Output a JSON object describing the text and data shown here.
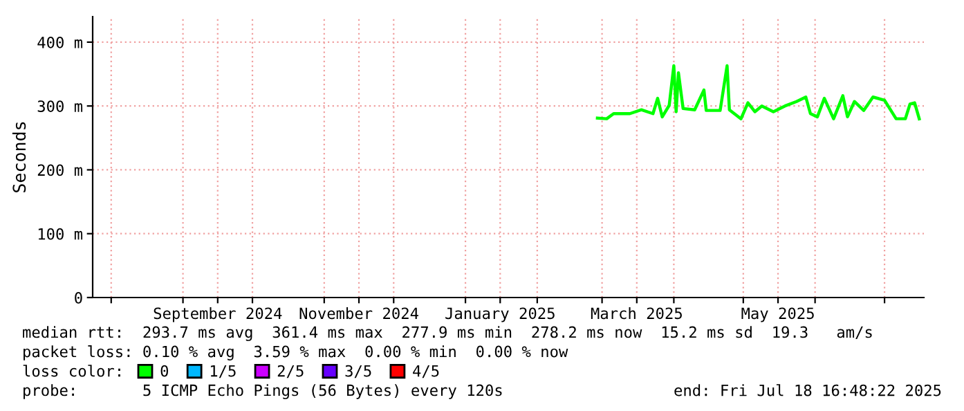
{
  "chart_data": {
    "type": "line",
    "ylabel": "Seconds",
    "x": [
      "2025-02-27",
      "2025-03-03",
      "2025-03-06",
      "2025-03-13",
      "2025-03-18",
      "2025-03-23",
      "2025-03-25",
      "2025-03-27",
      "2025-03-30",
      "2025-04-01",
      "2025-04-02",
      "2025-04-03",
      "2025-04-05",
      "2025-04-10",
      "2025-04-14",
      "2025-04-15",
      "2025-04-21",
      "2025-04-24",
      "2025-04-25",
      "2025-04-30",
      "2025-05-03",
      "2025-05-06",
      "2025-05-09",
      "2025-05-14",
      "2025-05-19",
      "2025-05-24",
      "2025-05-28",
      "2025-05-30",
      "2025-06-02",
      "2025-06-05",
      "2025-06-09",
      "2025-06-13",
      "2025-06-15",
      "2025-06-18",
      "2025-06-22",
      "2025-06-26",
      "2025-07-01",
      "2025-07-06",
      "2025-07-10",
      "2025-07-12",
      "2025-07-14",
      "2025-07-16"
    ],
    "series": [
      {
        "name": "0",
        "color": "#00ff00",
        "values": [
          281,
          280,
          288,
          288,
          294,
          288,
          312,
          283,
          301,
          363,
          291,
          352,
          296,
          294,
          325,
          293,
          293,
          363,
          294,
          280,
          305,
          291,
          300,
          291,
          300,
          307,
          314,
          288,
          283,
          312,
          280,
          316,
          283,
          307,
          293,
          314,
          309,
          280,
          280,
          303,
          305,
          280
        ]
      },
      {
        "name": "1/5",
        "color": "#00b8ff",
        "values": [
          null,
          null,
          null,
          null,
          null,
          null,
          null,
          null,
          null,
          null,
          null,
          null,
          null,
          null,
          null,
          null,
          null,
          null,
          null,
          null,
          null,
          null,
          null,
          null,
          null,
          null,
          null,
          null,
          null,
          null,
          null,
          null,
          null,
          null,
          null,
          null,
          null,
          null,
          null,
          null,
          null,
          null
        ]
      },
      {
        "name": "2/5",
        "color": "#cc00ff",
        "values": [
          null,
          null,
          null,
          null,
          null,
          null,
          null,
          null,
          null,
          null,
          null,
          null,
          null,
          null,
          null,
          null,
          null,
          null,
          null,
          null,
          null,
          null,
          null,
          null,
          null,
          null,
          null,
          null,
          null,
          null,
          null,
          null,
          null,
          null,
          null,
          null,
          null,
          null,
          null,
          null,
          null,
          null
        ]
      },
      {
        "name": "3/5",
        "color": "#6600ff",
        "values": [
          null,
          null,
          null,
          null,
          null,
          null,
          null,
          null,
          null,
          null,
          null,
          null,
          null,
          null,
          null,
          null,
          null,
          null,
          null,
          null,
          null,
          null,
          null,
          null,
          null,
          null,
          null,
          null,
          null,
          null,
          null,
          null,
          null,
          null,
          null,
          null,
          null,
          null,
          null,
          null,
          null,
          null
        ]
      },
      {
        "name": "4/5",
        "color": "#ff0000",
        "values": [
          null,
          null,
          null,
          null,
          null,
          null,
          null,
          null,
          null,
          null,
          null,
          null,
          null,
          null,
          null,
          null,
          null,
          null,
          null,
          null,
          null,
          null,
          null,
          null,
          null,
          null,
          null,
          null,
          null,
          null,
          null,
          null,
          null,
          null,
          null,
          null,
          null,
          null,
          null,
          null,
          null,
          null
        ]
      }
    ],
    "legend_title": "loss color:",
    "legend": "bottom",
    "xlim": [
      "2024-07-24",
      "2025-07-18"
    ],
    "xticks": [
      {
        "value": "2024-08-01",
        "label": null
      },
      {
        "value": "2024-09-01",
        "label": null
      },
      {
        "value": "2024-09-16",
        "label": "September 2024"
      },
      {
        "value": "2024-10-01",
        "label": null
      },
      {
        "value": "2024-11-01",
        "label": null
      },
      {
        "value": "2024-11-16",
        "label": "November 2024"
      },
      {
        "value": "2024-12-01",
        "label": null
      },
      {
        "value": "2025-01-01",
        "label": null
      },
      {
        "value": "2025-01-16",
        "label": "January 2025"
      },
      {
        "value": "2025-02-01",
        "label": null
      },
      {
        "value": "2025-03-01",
        "label": null
      },
      {
        "value": "2025-03-16",
        "label": "March 2025"
      },
      {
        "value": "2025-04-01",
        "label": null
      },
      {
        "value": "2025-05-01",
        "label": null
      },
      {
        "value": "2025-05-16",
        "label": "May 2025"
      },
      {
        "value": "2025-06-01",
        "label": null
      },
      {
        "value": "2025-07-01",
        "label": null
      }
    ],
    "ylim": [
      0,
      440
    ],
    "yticks": [
      0,
      {
        "value": 100,
        "label": "100 m"
      },
      {
        "value": 200,
        "label": "200 m"
      },
      {
        "value": 300,
        "label": "300 m"
      },
      {
        "value": 400,
        "label": "400 m"
      }
    ],
    "grid": true,
    "marker": "none",
    "line_style": "solid",
    "annotations": [
      "median rtt:  293.7 ms avg  361.4 ms max  277.9 ms min  278.2 ms now  15.2 ms sd  19.3   am/s",
      "packet loss: 0.10 % avg  3.59 % max  0.00 % min  0.00 % now",
      "probe:       5 ICMP Echo Pings (56 Bytes) every 120s",
      "end: Fri Jul 18 16:48:22 2025"
    ]
  }
}
